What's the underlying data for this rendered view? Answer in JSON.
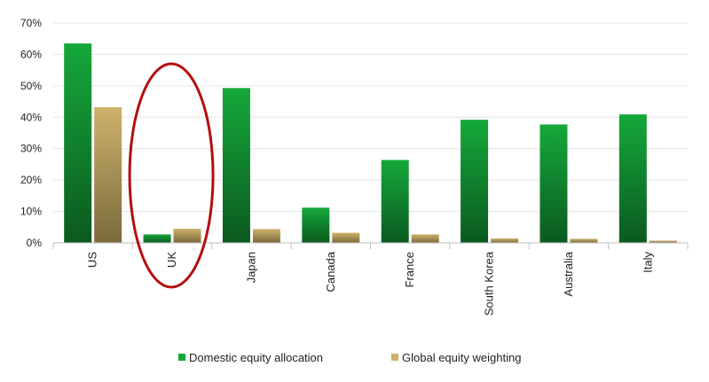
{
  "chart_data": {
    "type": "bar",
    "categories": [
      "US",
      "UK",
      "Japan",
      "Canada",
      "France",
      "South Korea",
      "Australia",
      "Italy"
    ],
    "series": [
      {
        "name": "Domestic equity allocation",
        "values": [
          63.5,
          2.7,
          49.3,
          11.2,
          26.4,
          39.2,
          37.7,
          40.9
        ]
      },
      {
        "name": "Global equity weighting",
        "values": [
          43.2,
          4.5,
          4.4,
          3.2,
          2.7,
          1.4,
          1.3,
          0.7
        ]
      }
    ],
    "ylim": [
      0,
      70
    ],
    "yticks": [
      "0%",
      "10%",
      "20%",
      "30%",
      "40%",
      "50%",
      "60%",
      "70%"
    ],
    "grid": true,
    "legend_position": "bottom",
    "colors": {
      "domestic_top": "#15a83a",
      "domestic_bottom": "#0b5a1f",
      "global_top": "#cdb26b",
      "global_bottom": "#7a6a3c",
      "highlight": "#b30e0e",
      "grid": "#e6e6e6",
      "axis": "#bdbdbd"
    },
    "highlight_category": "UK"
  }
}
